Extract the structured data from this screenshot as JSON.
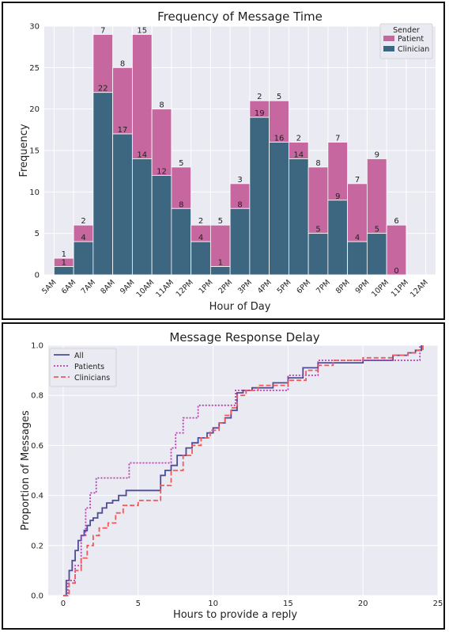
{
  "chart_data": [
    {
      "type": "bar",
      "stacked": true,
      "title": "Frequency of Message Time",
      "xlabel": "Hour of Day",
      "ylabel": "Frequency",
      "ylim": [
        0,
        30
      ],
      "yticks": [
        0,
        5,
        10,
        15,
        20,
        25,
        30
      ],
      "xtick_labels": [
        "5AM",
        "6AM",
        "7AM",
        "8AM",
        "9AM",
        "10AM",
        "11AM",
        "12PM",
        "1PM",
        "2PM",
        "3PM",
        "4PM",
        "5PM",
        "6PM",
        "7PM",
        "8PM",
        "9PM",
        "10PM",
        "11PM",
        "12AM"
      ],
      "categories": [
        "6AM",
        "7AM",
        "8AM",
        "9AM",
        "10AM",
        "11AM",
        "12PM",
        "1PM",
        "2PM",
        "3PM",
        "4PM",
        "5PM",
        "6PM",
        "7PM",
        "8PM",
        "9PM",
        "10PM",
        "11PM"
      ],
      "legend_title": "Sender",
      "legend_position": "top-right",
      "grid": true,
      "series": [
        {
          "name": "Patient",
          "color": "#c7679f",
          "values": [
            1,
            2,
            7,
            8,
            15,
            8,
            5,
            2,
            5,
            3,
            2,
            5,
            2,
            8,
            7,
            7,
            9,
            6
          ]
        },
        {
          "name": "Clinician",
          "color": "#3d6680",
          "values": [
            1,
            4,
            22,
            17,
            14,
            12,
            8,
            4,
            1,
            8,
            19,
            16,
            14,
            5,
            9,
            4,
            5,
            0
          ]
        }
      ]
    },
    {
      "type": "line",
      "step": true,
      "title": "Message Response Delay",
      "xlabel": "Hours to provide a reply",
      "ylabel": "Proportion of Messages",
      "xlim": [
        -1,
        25
      ],
      "ylim": [
        0,
        1
      ],
      "xticks": [
        0,
        5,
        10,
        15,
        20,
        25
      ],
      "yticks": [
        0.0,
        0.2,
        0.4,
        0.6,
        0.8,
        1.0
      ],
      "legend_position": "top-left",
      "grid": true,
      "series": [
        {
          "name": "All",
          "color": "#4c4c9a",
          "dash": "solid",
          "x": [
            0,
            0.2,
            0.4,
            0.6,
            0.8,
            1.0,
            1.2,
            1.4,
            1.6,
            1.8,
            2.0,
            2.3,
            2.6,
            2.9,
            3.3,
            3.7,
            4.2,
            5.0,
            6.5,
            6.8,
            7.2,
            7.6,
            8.2,
            8.6,
            9.0,
            9.6,
            10.0,
            10.4,
            10.8,
            11.2,
            11.6,
            12.0,
            12.6,
            13.0,
            14.0,
            15.0,
            16.0,
            17.0,
            18.0,
            20.0,
            22.0,
            23.0,
            23.5,
            23.9
          ],
          "y": [
            0,
            0.06,
            0.1,
            0.14,
            0.18,
            0.22,
            0.24,
            0.26,
            0.28,
            0.3,
            0.31,
            0.33,
            0.35,
            0.37,
            0.38,
            0.4,
            0.42,
            0.42,
            0.48,
            0.5,
            0.52,
            0.56,
            0.59,
            0.61,
            0.63,
            0.65,
            0.67,
            0.69,
            0.71,
            0.74,
            0.81,
            0.82,
            0.83,
            0.83,
            0.85,
            0.87,
            0.91,
            0.93,
            0.93,
            0.94,
            0.96,
            0.97,
            0.98,
            1.0
          ]
        },
        {
          "name": "Patients",
          "color": "#b83fae",
          "dash": "dotted",
          "x": [
            0,
            0.3,
            0.8,
            1.2,
            1.5,
            1.8,
            2.2,
            2.6,
            4.0,
            4.4,
            5.0,
            6.8,
            7.2,
            7.5,
            8.0,
            9.0,
            9.6,
            10.0,
            11.0,
            11.5,
            12.0,
            13.0,
            15.0,
            16.5,
            17.0,
            18.0,
            20.0,
            22.0,
            23.0,
            23.8
          ],
          "y": [
            0,
            0.06,
            0.12,
            0.24,
            0.35,
            0.41,
            0.47,
            0.47,
            0.47,
            0.53,
            0.53,
            0.53,
            0.59,
            0.65,
            0.71,
            0.76,
            0.76,
            0.76,
            0.76,
            0.82,
            0.82,
            0.82,
            0.88,
            0.88,
            0.94,
            0.94,
            0.94,
            0.94,
            0.94,
            1.0
          ]
        },
        {
          "name": "Clinicians",
          "color": "#f05a5a",
          "dash": "dashed",
          "x": [
            0,
            0.4,
            0.8,
            1.2,
            1.6,
            2.0,
            2.4,
            3.0,
            3.5,
            4.0,
            5.0,
            6.0,
            6.5,
            7.2,
            8.0,
            8.6,
            9.2,
            9.8,
            10.4,
            10.8,
            11.2,
            11.6,
            12.2,
            13.0,
            14.0,
            15.0,
            16.2,
            17.0,
            18.0,
            20.0,
            22.0,
            23.0,
            23.6,
            24.0
          ],
          "y": [
            0,
            0.05,
            0.1,
            0.15,
            0.2,
            0.24,
            0.27,
            0.29,
            0.33,
            0.36,
            0.38,
            0.38,
            0.44,
            0.5,
            0.56,
            0.6,
            0.63,
            0.66,
            0.69,
            0.72,
            0.75,
            0.8,
            0.82,
            0.84,
            0.84,
            0.86,
            0.9,
            0.92,
            0.94,
            0.95,
            0.96,
            0.97,
            0.98,
            1.0
          ]
        }
      ]
    }
  ]
}
